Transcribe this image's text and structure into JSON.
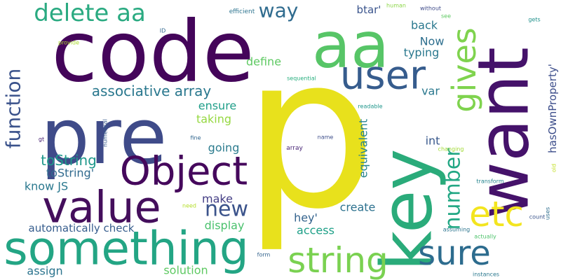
{
  "words": [
    {
      "text": "p",
      "color": "#e8e11c"
    },
    {
      "text": "code",
      "color": "#44055a"
    },
    {
      "text": "pre",
      "color": "#3f4b89"
    },
    {
      "text": "key",
      "color": "#2aab7a"
    },
    {
      "text": "want",
      "color": "#45126a"
    },
    {
      "text": "aa",
      "color": "#57c567"
    },
    {
      "text": "something",
      "color": "#23a584"
    },
    {
      "text": "value",
      "color": "#440e5c"
    },
    {
      "text": "Object",
      "color": "#45085c"
    },
    {
      "text": "user",
      "color": "#365c8d"
    },
    {
      "text": "gives",
      "color": "#7fd34e"
    },
    {
      "text": "sure",
      "color": "#2d6c8e"
    },
    {
      "text": "string",
      "color": "#7ad151"
    },
    {
      "text": "etc",
      "color": "#f3e51f"
    },
    {
      "text": "delete aa",
      "color": "#2aaa81"
    },
    {
      "text": "function",
      "color": "#3a528b"
    },
    {
      "text": "number",
      "color": "#22a784"
    },
    {
      "text": "new",
      "color": "#3b538b"
    },
    {
      "text": "way",
      "color": "#2f6b8e"
    },
    {
      "text": "associative array",
      "color": "#2a788e"
    },
    {
      "text": "toString",
      "color": "#1f988b"
    },
    {
      "text": "toString'",
      "color": "#306a8e"
    },
    {
      "text": "know JS",
      "color": "#2a788e"
    },
    {
      "text": "hasOwnProperty'",
      "color": "#3c4d8a"
    },
    {
      "text": "equivalent",
      "color": "#26838e"
    },
    {
      "text": "define",
      "color": "#5ec962"
    },
    {
      "text": "back",
      "color": "#2a788e"
    },
    {
      "text": "Now",
      "color": "#2e6f8e"
    },
    {
      "text": "typing",
      "color": "#2a788e"
    },
    {
      "text": "btar'",
      "color": "#3a548c"
    },
    {
      "text": "ensure",
      "color": "#1f9e89"
    },
    {
      "text": "taking",
      "color": "#95d840"
    },
    {
      "text": "going",
      "color": "#2b7b8e"
    },
    {
      "text": "make",
      "color": "#433d84"
    },
    {
      "text": "display",
      "color": "#4ac16d"
    },
    {
      "text": "int",
      "color": "#38588c"
    },
    {
      "text": "var",
      "color": "#2a788e"
    },
    {
      "text": "create",
      "color": "#2c718e"
    },
    {
      "text": "hey'",
      "color": "#33638d"
    },
    {
      "text": "access",
      "color": "#1fa088"
    },
    {
      "text": "automatically check",
      "color": "#365d8d"
    },
    {
      "text": "assign",
      "color": "#2b748e"
    },
    {
      "text": "solution",
      "color": "#5ec962"
    },
    {
      "text": "efficient",
      "color": "#2c738e"
    },
    {
      "text": "human",
      "color": "#8bd646"
    },
    {
      "text": "without",
      "color": "#3e4a89"
    },
    {
      "text": "see",
      "color": "#5ec962"
    },
    {
      "text": "gets",
      "color": "#21918c"
    },
    {
      "text": "ID",
      "color": "#31678e"
    },
    {
      "text": "provide",
      "color": "#addc30"
    },
    {
      "text": "sequential",
      "color": "#29af7f"
    },
    {
      "text": "readable",
      "color": "#1f968b"
    },
    {
      "text": "numerical",
      "color": "#375a8c"
    },
    {
      "text": "gt",
      "color": "#482173"
    },
    {
      "text": "fine",
      "color": "#31668e"
    },
    {
      "text": "name",
      "color": "#3d4e8a"
    },
    {
      "text": "array",
      "color": "#482576"
    },
    {
      "text": "changing",
      "color": "#a2da37"
    },
    {
      "text": "old",
      "color": "#c2df23"
    },
    {
      "text": "transform",
      "color": "#25848e"
    },
    {
      "text": "need",
      "color": "#b5de2b"
    },
    {
      "text": "uses",
      "color": "#2e6e8e"
    },
    {
      "text": "count",
      "color": "#3a548c"
    },
    {
      "text": "assuming",
      "color": "#2b748e"
    },
    {
      "text": "actually",
      "color": "#4ec36b"
    },
    {
      "text": "form",
      "color": "#33638d"
    },
    {
      "text": "instances",
      "color": "#2a788e"
    }
  ]
}
